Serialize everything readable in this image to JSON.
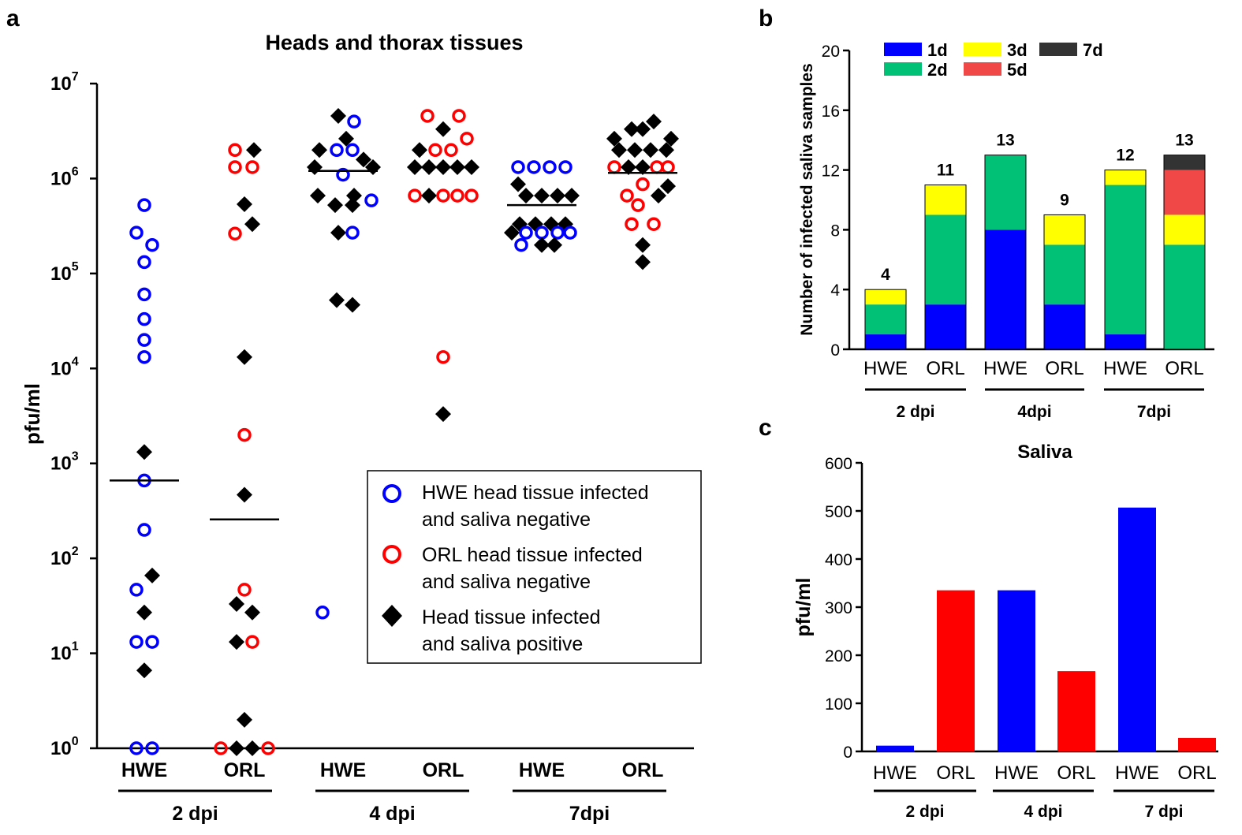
{
  "chart_data": [
    {
      "panel": "a",
      "type": "scatter",
      "title": "Heads and thorax tissues",
      "ylabel": "pfu/ml",
      "yscale": "log10",
      "ylim_log10": [
        0,
        7
      ],
      "yticks": [
        {
          "base": "10",
          "exp": "0"
        },
        {
          "base": "10",
          "exp": "1"
        },
        {
          "base": "10",
          "exp": "2"
        },
        {
          "base": "10",
          "exp": "3"
        },
        {
          "base": "10",
          "exp": "4"
        },
        {
          "base": "10",
          "exp": "5"
        },
        {
          "base": "10",
          "exp": "6"
        },
        {
          "base": "10",
          "exp": "7"
        }
      ],
      "categories": [
        "HWE",
        "ORL",
        "HWE",
        "ORL",
        "HWE",
        "ORL"
      ],
      "groups": [
        "2 dpi",
        "4 dpi",
        "7dpi"
      ],
      "legend": [
        {
          "line1": "HWE head tissue infected",
          "line2": "and saliva negative",
          "marker": "blue-circle"
        },
        {
          "line1": "ORL head tissue infected",
          "line2": "and saliva negative",
          "marker": "red-circle"
        },
        {
          "line1": "Head tissue infected",
          "line2": "and saliva positive",
          "marker": "black-diamond"
        }
      ],
      "medians_log10": [
        2.82,
        2.41,
        6.08,
        6.12,
        5.72,
        6.06
      ],
      "points": [
        {
          "cat": 0,
          "kind": "blue",
          "logy": 5.72,
          "dx": 0
        },
        {
          "cat": 0,
          "kind": "blue",
          "logy": 5.43,
          "dx": -10
        },
        {
          "cat": 0,
          "kind": "blue",
          "logy": 5.3,
          "dx": 10
        },
        {
          "cat": 0,
          "kind": "blue",
          "logy": 5.12,
          "dx": 0
        },
        {
          "cat": 0,
          "kind": "blue",
          "logy": 4.78,
          "dx": 0
        },
        {
          "cat": 0,
          "kind": "blue",
          "logy": 4.52,
          "dx": 0
        },
        {
          "cat": 0,
          "kind": "blue",
          "logy": 4.3,
          "dx": 0
        },
        {
          "cat": 0,
          "kind": "blue",
          "logy": 4.12,
          "dx": 0
        },
        {
          "cat": 0,
          "kind": "black",
          "logy": 3.12,
          "dx": 0
        },
        {
          "cat": 0,
          "kind": "blue",
          "logy": 2.82,
          "dx": 0
        },
        {
          "cat": 0,
          "kind": "blue",
          "logy": 2.3,
          "dx": 0
        },
        {
          "cat": 0,
          "kind": "black",
          "logy": 1.82,
          "dx": 10
        },
        {
          "cat": 0,
          "kind": "blue",
          "logy": 1.67,
          "dx": -10
        },
        {
          "cat": 0,
          "kind": "black",
          "logy": 1.43,
          "dx": 0
        },
        {
          "cat": 0,
          "kind": "blue",
          "logy": 1.12,
          "dx": -10
        },
        {
          "cat": 0,
          "kind": "blue",
          "logy": 1.12,
          "dx": 10
        },
        {
          "cat": 0,
          "kind": "black",
          "logy": 0.82,
          "dx": 0
        },
        {
          "cat": 0,
          "kind": "blue",
          "logy": 0,
          "dx": -10
        },
        {
          "cat": 0,
          "kind": "blue",
          "logy": 0,
          "dx": 10
        },
        {
          "cat": 1,
          "kind": "red",
          "logy": 6.3,
          "dx": -12
        },
        {
          "cat": 1,
          "kind": "black",
          "logy": 6.3,
          "dx": 12
        },
        {
          "cat": 1,
          "kind": "red",
          "logy": 6.12,
          "dx": -12
        },
        {
          "cat": 1,
          "kind": "red",
          "logy": 6.12,
          "dx": 10
        },
        {
          "cat": 1,
          "kind": "black",
          "logy": 5.73,
          "dx": 0
        },
        {
          "cat": 1,
          "kind": "black",
          "logy": 5.52,
          "dx": 10
        },
        {
          "cat": 1,
          "kind": "red",
          "logy": 5.42,
          "dx": -12
        },
        {
          "cat": 1,
          "kind": "black",
          "logy": 4.12,
          "dx": 0
        },
        {
          "cat": 1,
          "kind": "red",
          "logy": 3.3,
          "dx": 0
        },
        {
          "cat": 1,
          "kind": "black",
          "logy": 2.67,
          "dx": 0
        },
        {
          "cat": 1,
          "kind": "red",
          "logy": 1.67,
          "dx": 0
        },
        {
          "cat": 1,
          "kind": "black",
          "logy": 1.52,
          "dx": -10
        },
        {
          "cat": 1,
          "kind": "black",
          "logy": 1.43,
          "dx": 10
        },
        {
          "cat": 1,
          "kind": "black",
          "logy": 1.12,
          "dx": -10
        },
        {
          "cat": 1,
          "kind": "red",
          "logy": 1.12,
          "dx": 10
        },
        {
          "cat": 1,
          "kind": "black",
          "logy": 0.3,
          "dx": 0
        },
        {
          "cat": 1,
          "kind": "red",
          "logy": 0,
          "dx": -30
        },
        {
          "cat": 1,
          "kind": "black",
          "logy": 0,
          "dx": -10
        },
        {
          "cat": 1,
          "kind": "black",
          "logy": 0,
          "dx": 10
        },
        {
          "cat": 1,
          "kind": "red",
          "logy": 0,
          "dx": 30
        },
        {
          "cat": 2,
          "kind": "black",
          "logy": 6.66,
          "dx": -6
        },
        {
          "cat": 2,
          "kind": "blue",
          "logy": 6.6,
          "dx": 14
        },
        {
          "cat": 2,
          "kind": "black",
          "logy": 6.42,
          "dx": 4
        },
        {
          "cat": 2,
          "kind": "black",
          "logy": 6.3,
          "dx": -30
        },
        {
          "cat": 2,
          "kind": "blue",
          "logy": 6.3,
          "dx": -8
        },
        {
          "cat": 2,
          "kind": "blue",
          "logy": 6.3,
          "dx": 12
        },
        {
          "cat": 2,
          "kind": "black",
          "logy": 6.2,
          "dx": 26
        },
        {
          "cat": 2,
          "kind": "black",
          "logy": 6.12,
          "dx": -36
        },
        {
          "cat": 2,
          "kind": "black",
          "logy": 6.12,
          "dx": 38
        },
        {
          "cat": 2,
          "kind": "blue",
          "logy": 6.04,
          "dx": 0
        },
        {
          "cat": 2,
          "kind": "black",
          "logy": 5.82,
          "dx": -32
        },
        {
          "cat": 2,
          "kind": "black",
          "logy": 5.82,
          "dx": 14
        },
        {
          "cat": 2,
          "kind": "blue",
          "logy": 5.77,
          "dx": 36
        },
        {
          "cat": 2,
          "kind": "black",
          "logy": 5.72,
          "dx": -10
        },
        {
          "cat": 2,
          "kind": "black",
          "logy": 5.72,
          "dx": 12
        },
        {
          "cat": 2,
          "kind": "black",
          "logy": 5.43,
          "dx": -6
        },
        {
          "cat": 2,
          "kind": "blue",
          "logy": 5.43,
          "dx": 12
        },
        {
          "cat": 2,
          "kind": "black",
          "logy": 4.72,
          "dx": -8
        },
        {
          "cat": 2,
          "kind": "black",
          "logy": 4.67,
          "dx": 12
        },
        {
          "cat": 2,
          "kind": "blue",
          "logy": 1.43,
          "dx": -26
        },
        {
          "cat": 3,
          "kind": "red",
          "logy": 6.66,
          "dx": -20
        },
        {
          "cat": 3,
          "kind": "red",
          "logy": 6.66,
          "dx": 20
        },
        {
          "cat": 3,
          "kind": "black",
          "logy": 6.52,
          "dx": 0
        },
        {
          "cat": 3,
          "kind": "red",
          "logy": 6.42,
          "dx": 30
        },
        {
          "cat": 3,
          "kind": "black",
          "logy": 6.3,
          "dx": -30
        },
        {
          "cat": 3,
          "kind": "red",
          "logy": 6.3,
          "dx": -10
        },
        {
          "cat": 3,
          "kind": "red",
          "logy": 6.3,
          "dx": 10
        },
        {
          "cat": 3,
          "kind": "black",
          "logy": 6.12,
          "dx": -36
        },
        {
          "cat": 3,
          "kind": "black",
          "logy": 6.12,
          "dx": -18
        },
        {
          "cat": 3,
          "kind": "black",
          "logy": 6.12,
          "dx": 0
        },
        {
          "cat": 3,
          "kind": "black",
          "logy": 6.12,
          "dx": 18
        },
        {
          "cat": 3,
          "kind": "black",
          "logy": 6.12,
          "dx": 36
        },
        {
          "cat": 3,
          "kind": "red",
          "logy": 5.82,
          "dx": -36
        },
        {
          "cat": 3,
          "kind": "black",
          "logy": 5.82,
          "dx": -18
        },
        {
          "cat": 3,
          "kind": "red",
          "logy": 5.82,
          "dx": 0
        },
        {
          "cat": 3,
          "kind": "red",
          "logy": 5.82,
          "dx": 18
        },
        {
          "cat": 3,
          "kind": "red",
          "logy": 5.82,
          "dx": 36
        },
        {
          "cat": 3,
          "kind": "red",
          "logy": 4.12,
          "dx": 0
        },
        {
          "cat": 3,
          "kind": "black",
          "logy": 3.52,
          "dx": 0
        },
        {
          "cat": 4,
          "kind": "blue",
          "logy": 6.12,
          "dx": -30
        },
        {
          "cat": 4,
          "kind": "blue",
          "logy": 6.12,
          "dx": -10
        },
        {
          "cat": 4,
          "kind": "blue",
          "logy": 6.12,
          "dx": 10
        },
        {
          "cat": 4,
          "kind": "blue",
          "logy": 6.12,
          "dx": 30
        },
        {
          "cat": 4,
          "kind": "black",
          "logy": 5.94,
          "dx": -30
        },
        {
          "cat": 4,
          "kind": "black",
          "logy": 5.82,
          "dx": -20
        },
        {
          "cat": 4,
          "kind": "black",
          "logy": 5.82,
          "dx": 0
        },
        {
          "cat": 4,
          "kind": "black",
          "logy": 5.82,
          "dx": 20
        },
        {
          "cat": 4,
          "kind": "black",
          "logy": 5.82,
          "dx": 38
        },
        {
          "cat": 4,
          "kind": "black",
          "logy": 5.52,
          "dx": -28
        },
        {
          "cat": 4,
          "kind": "black",
          "logy": 5.52,
          "dx": -8
        },
        {
          "cat": 4,
          "kind": "black",
          "logy": 5.52,
          "dx": 12
        },
        {
          "cat": 4,
          "kind": "black",
          "logy": 5.52,
          "dx": 30
        },
        {
          "cat": 4,
          "kind": "black",
          "logy": 5.43,
          "dx": -38
        },
        {
          "cat": 4,
          "kind": "blue",
          "logy": 5.43,
          "dx": -20
        },
        {
          "cat": 4,
          "kind": "blue",
          "logy": 5.43,
          "dx": 0
        },
        {
          "cat": 4,
          "kind": "blue",
          "logy": 5.43,
          "dx": 20
        },
        {
          "cat": 4,
          "kind": "blue",
          "logy": 5.43,
          "dx": 36
        },
        {
          "cat": 4,
          "kind": "blue",
          "logy": 5.3,
          "dx": -26
        },
        {
          "cat": 4,
          "kind": "black",
          "logy": 5.3,
          "dx": 0
        },
        {
          "cat": 4,
          "kind": "black",
          "logy": 5.3,
          "dx": 16
        },
        {
          "cat": 5,
          "kind": "black",
          "logy": 6.6,
          "dx": 14
        },
        {
          "cat": 5,
          "kind": "black",
          "logy": 6.52,
          "dx": -14
        },
        {
          "cat": 5,
          "kind": "black",
          "logy": 6.52,
          "dx": 0
        },
        {
          "cat": 5,
          "kind": "black",
          "logy": 6.42,
          "dx": -36
        },
        {
          "cat": 5,
          "kind": "black",
          "logy": 6.42,
          "dx": 36
        },
        {
          "cat": 5,
          "kind": "black",
          "logy": 6.3,
          "dx": -30
        },
        {
          "cat": 5,
          "kind": "black",
          "logy": 6.3,
          "dx": -10
        },
        {
          "cat": 5,
          "kind": "black",
          "logy": 6.3,
          "dx": 10
        },
        {
          "cat": 5,
          "kind": "black",
          "logy": 6.3,
          "dx": 30
        },
        {
          "cat": 5,
          "kind": "red",
          "logy": 6.12,
          "dx": -36
        },
        {
          "cat": 5,
          "kind": "black",
          "logy": 6.12,
          "dx": -18
        },
        {
          "cat": 5,
          "kind": "black",
          "logy": 6.12,
          "dx": 0
        },
        {
          "cat": 5,
          "kind": "red",
          "logy": 6.12,
          "dx": 18
        },
        {
          "cat": 5,
          "kind": "red",
          "logy": 6.12,
          "dx": 32
        },
        {
          "cat": 5,
          "kind": "red",
          "logy": 5.94,
          "dx": 0
        },
        {
          "cat": 5,
          "kind": "black",
          "logy": 5.92,
          "dx": 32
        },
        {
          "cat": 5,
          "kind": "red",
          "logy": 5.82,
          "dx": -20
        },
        {
          "cat": 5,
          "kind": "black",
          "logy": 5.82,
          "dx": 20
        },
        {
          "cat": 5,
          "kind": "red",
          "logy": 5.72,
          "dx": -6
        },
        {
          "cat": 5,
          "kind": "red",
          "logy": 5.52,
          "dx": -14
        },
        {
          "cat": 5,
          "kind": "red",
          "logy": 5.52,
          "dx": 14
        },
        {
          "cat": 5,
          "kind": "black",
          "logy": 5.3,
          "dx": 0
        },
        {
          "cat": 5,
          "kind": "black",
          "logy": 5.12,
          "dx": 0
        }
      ]
    },
    {
      "panel": "b",
      "type": "bar",
      "stacked": true,
      "ylabel": "Number of infected saliva samples",
      "ylim": [
        0,
        20
      ],
      "yticks": [
        0,
        4,
        8,
        12,
        16,
        20
      ],
      "categories": [
        "HWE",
        "ORL",
        "HWE",
        "ORL",
        "HWE",
        "ORL"
      ],
      "groups": [
        "2 dpi",
        "4dpi",
        "7dpi"
      ],
      "totals": [
        4,
        11,
        13,
        9,
        12,
        13
      ],
      "series": [
        {
          "name": "1d",
          "color": "#0000ff",
          "values": [
            1,
            3,
            8,
            3,
            1,
            0
          ]
        },
        {
          "name": "2d",
          "color": "#00c176",
          "values": [
            2,
            6,
            5,
            4,
            10,
            7
          ]
        },
        {
          "name": "3d",
          "color": "#ffff00",
          "values": [
            1,
            2,
            0,
            2,
            1,
            2
          ]
        },
        {
          "name": "5d",
          "color": "#f04747",
          "values": [
            0,
            0,
            0,
            0,
            0,
            3
          ]
        },
        {
          "name": "7d",
          "color": "#333333",
          "values": [
            0,
            0,
            0,
            0,
            0,
            1
          ]
        }
      ]
    },
    {
      "panel": "c",
      "type": "bar",
      "title": "Saliva",
      "ylabel": "pfu/ml",
      "ylim": [
        0,
        600
      ],
      "yticks": [
        0,
        100,
        200,
        300,
        400,
        500,
        600
      ],
      "categories": [
        "HWE",
        "ORL",
        "HWE",
        "ORL",
        "HWE",
        "ORL"
      ],
      "groups": [
        "2 dpi",
        "4 dpi",
        "7 dpi"
      ],
      "values": [
        12,
        335,
        335,
        167,
        507,
        28
      ],
      "colors": [
        "#0000ff",
        "#ff0000",
        "#0000ff",
        "#ff0000",
        "#0000ff",
        "#ff0000"
      ]
    }
  ],
  "panel_labels": [
    "a",
    "b",
    "c"
  ]
}
